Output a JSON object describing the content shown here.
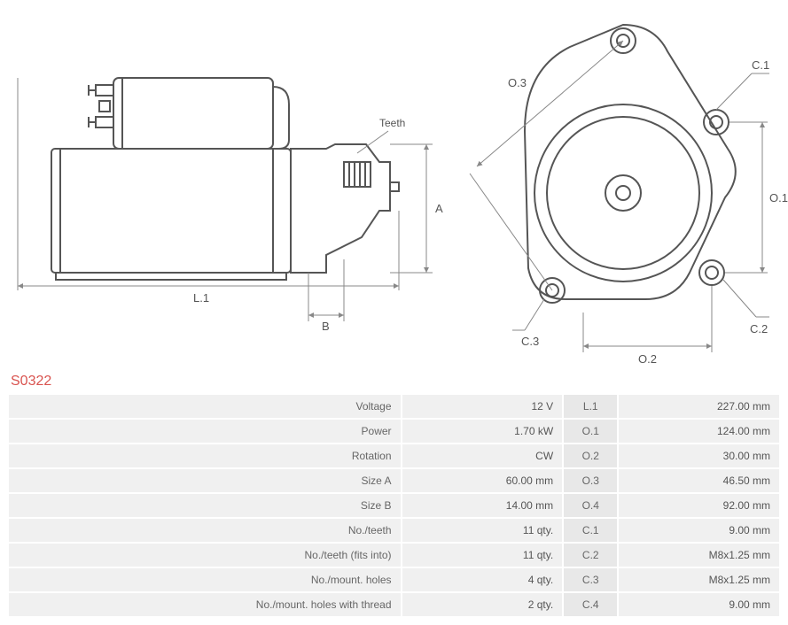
{
  "productCode": "S0322",
  "diagram": {
    "stroke": "#555555",
    "thinStroke": "#888888",
    "text": "#555555",
    "fontFamily": "Arial, sans-serif",
    "labelFontSize": 12,
    "sideView": {
      "teethLabel": "Teeth",
      "dims": {
        "L1": "L.1",
        "A": "A",
        "B": "B"
      }
    },
    "frontView": {
      "dims": {
        "O1": "O.1",
        "O2": "O.2",
        "O3": "O.3",
        "C1": "C.1",
        "C2": "C.2",
        "C3": "C.3"
      }
    }
  },
  "specs": {
    "rows": [
      {
        "labelA": "Voltage",
        "valA": "12 V",
        "labelB": "L.1",
        "valB": "227.00 mm"
      },
      {
        "labelA": "Power",
        "valA": "1.70 kW",
        "labelB": "O.1",
        "valB": "124.00 mm"
      },
      {
        "labelA": "Rotation",
        "valA": "CW",
        "labelB": "O.2",
        "valB": "30.00 mm"
      },
      {
        "labelA": "Size A",
        "valA": "60.00 mm",
        "labelB": "O.3",
        "valB": "46.50 mm"
      },
      {
        "labelA": "Size B",
        "valA": "14.00 mm",
        "labelB": "O.4",
        "valB": "92.00 mm"
      },
      {
        "labelA": "No./teeth",
        "valA": "11 qty.",
        "labelB": "C.1",
        "valB": "9.00 mm"
      },
      {
        "labelA": "No./teeth (fits into)",
        "valA": "11 qty.",
        "labelB": "C.2",
        "valB": "M8x1.25 mm"
      },
      {
        "labelA": "No./mount. holes",
        "valA": "4 qty.",
        "labelB": "C.3",
        "valB": "M8x1.25 mm"
      },
      {
        "labelA": "No./mount. holes with thread",
        "valA": "2 qty.",
        "labelB": "C.4",
        "valB": "9.00 mm"
      }
    ]
  },
  "colors": {
    "productCode": "#d9534f",
    "tableCellBg": "#f0f0f0",
    "tableLabelBBg": "#e8e8e8",
    "tableText": "#555555"
  }
}
